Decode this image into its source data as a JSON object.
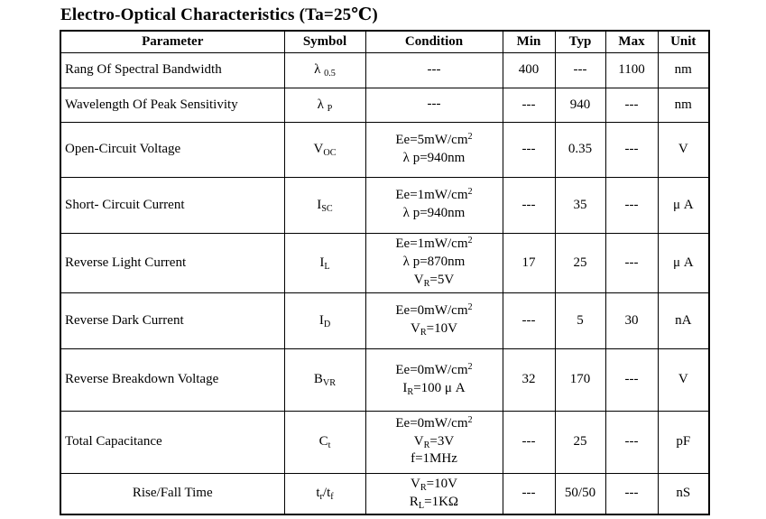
{
  "title": "Electro-Optical Characteristics (Ta=25℃)",
  "table": {
    "headers": [
      "Parameter",
      "Symbol",
      "Condition",
      "Min",
      "Typ",
      "Max",
      "Unit"
    ],
    "rows": [
      {
        "parameter": "Rang Of Spectral Bandwidth",
        "param_align": "left",
        "symbol": "λ ~0.5~",
        "condition": [
          "---"
        ],
        "min": "400",
        "typ": "---",
        "max": "1100",
        "unit": "nm"
      },
      {
        "parameter": "Wavelength Of Peak Sensitivity",
        "param_align": "left",
        "symbol": "λ ~P~",
        "condition": [
          "---"
        ],
        "min": "---",
        "typ": "940",
        "max": "---",
        "unit": "nm"
      },
      {
        "parameter": "Open-Circuit Voltage",
        "param_align": "left",
        "symbol": "V~OC~",
        "condition": [
          "Ee=5mW/cm^2^",
          "λ p=940nm"
        ],
        "min": "---",
        "typ": "0.35",
        "max": "---",
        "unit": "V"
      },
      {
        "parameter": "Short- Circuit Current",
        "param_align": "left",
        "symbol": "I~SC~",
        "condition": [
          "Ee=1mW/cm^2^",
          "λ p=940nm"
        ],
        "min": "---",
        "typ": "35",
        "max": "---",
        "unit": "μ A"
      },
      {
        "parameter": "Reverse Light Current",
        "param_align": "left",
        "symbol": "I~L~",
        "condition": [
          "Ee=1mW/cm^2^",
          "λ p=870nm",
          "V~R~=5V"
        ],
        "min": "17",
        "typ": "25",
        "max": "---",
        "unit": "μ A"
      },
      {
        "parameter": "Reverse Dark Current",
        "param_align": "left",
        "symbol": "I~D~",
        "condition": [
          "Ee=0mW/cm^2^",
          "V~R~=10V"
        ],
        "min": "---",
        "typ": "5",
        "max": "30",
        "unit": "nA"
      },
      {
        "parameter": "Reverse Breakdown Voltage",
        "param_align": "left",
        "symbol": "B~VR~",
        "condition": [
          "Ee=0mW/cm^2^",
          "I~R~=100 μ A"
        ],
        "min": "32",
        "typ": "170",
        "max": "---",
        "unit": "V"
      },
      {
        "parameter": "Total Capacitance",
        "param_align": "left",
        "symbol": "C~t~",
        "condition": [
          "Ee=0mW/cm^2^",
          "V~R~=3V",
          "f=1MHz"
        ],
        "min": "---",
        "typ": "25",
        "max": "---",
        "unit": "pF"
      },
      {
        "parameter": "Rise/Fall Time",
        "param_align": "center",
        "symbol": "t~r~/t~f~",
        "condition": [
          "V~R~=10V",
          "R~L~=1KΩ"
        ],
        "min": "---",
        "typ": "50/50",
        "max": "---",
        "unit": "nS"
      }
    ]
  }
}
